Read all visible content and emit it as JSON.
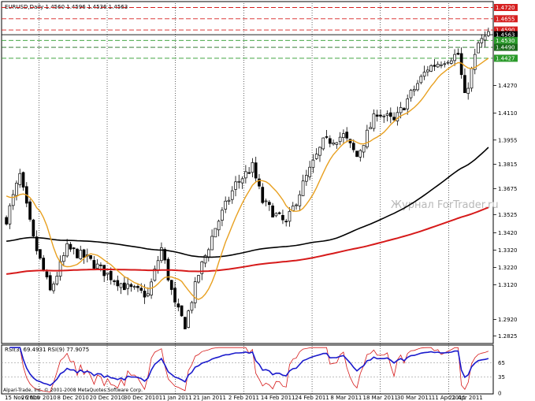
{
  "header": {
    "title": "EURUSD,Daily 1.4560 1.4596 1.4536 1.4563"
  },
  "watermark": "Журнал ForTrader.ru",
  "copyright": "Alpari-Trade, Inc. © 2001-2008 MetaQuotes Software Corp.",
  "price_levels": [
    {
      "label": "1.4720",
      "color": "#d62020",
      "highlight": true
    },
    {
      "label": "1.4655",
      "color": "#d62020",
      "highlight": true
    },
    {
      "label": "1.4590",
      "color": "#d62020",
      "highlight": true
    },
    {
      "label": "1.4563",
      "color": "#000000",
      "highlight": true
    },
    {
      "label": "1.4530",
      "color": "#2a9a2a",
      "highlight": true
    },
    {
      "label": "1.4490",
      "color": "#1a6a1a",
      "highlight": true
    },
    {
      "label": "1.4427",
      "color": "#2a9a2a",
      "highlight": true
    }
  ],
  "y_ticks": [
    "1.4270",
    "1.4110",
    "1.3955",
    "1.3815",
    "1.3675",
    "1.3525",
    "1.3420",
    "1.3320",
    "1.3220",
    "1.3120",
    "1.2920",
    "1.2825"
  ],
  "x_ticks": [
    "15 Nov 2010",
    "26 Nov 2010",
    "8 Dec 2010",
    "20 Dec 2010",
    "30 Dec 2010",
    "11 Jan 2011",
    "21 Jan 2011",
    "2 Feb 2011",
    "14 Feb 2011",
    "24 Feb 2011",
    "8 Mar 2011",
    "18 Mar 2011",
    "30 Mar 2011",
    "11 Apr 2011",
    "21 Apr 2011"
  ],
  "rsi": {
    "title": "RSI(3) 69.4931 RSI(9) 77.9075",
    "levels": [
      "65",
      "35",
      "0"
    ]
  },
  "colors": {
    "candle": "#000000",
    "ma_fast": "#e8a020",
    "ma_slow": "#000000",
    "ma_long": "#d61a1a",
    "rsi_fast": "#d61a1a",
    "rsi_slow": "#1a1acc"
  }
}
